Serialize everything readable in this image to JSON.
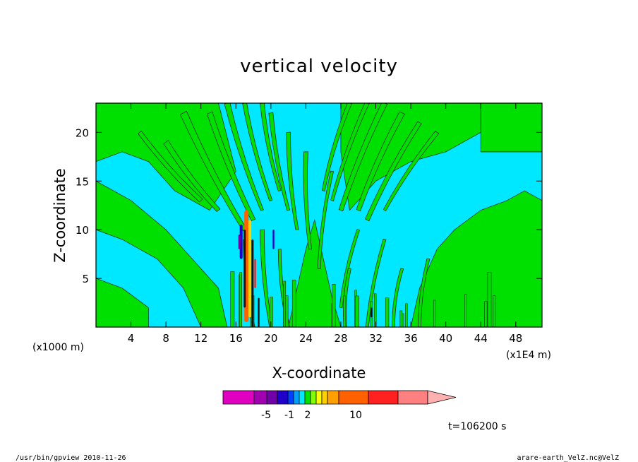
{
  "chart_data": {
    "type": "heatmap",
    "title": "vertical velocity",
    "xlabel": "X-coordinate",
    "ylabel": "Z-coordinate",
    "x_unit_left": "(x1000 m)",
    "x_unit_right": "(x1E4 m)",
    "xlim": [
      0,
      51
    ],
    "ylim": [
      0,
      23
    ],
    "x_ticks": [
      4,
      8,
      12,
      16,
      20,
      24,
      28,
      32,
      36,
      40,
      44,
      48
    ],
    "y_ticks": [
      5,
      10,
      15,
      20
    ],
    "colorbar": {
      "colors": [
        "#e000c0",
        "#a000b0",
        "#7000a8",
        "#2000c8",
        "#0040ff",
        "#00a0ff",
        "#00e8ff",
        "#00e000",
        "#80ff00",
        "#ffff00",
        "#ffd000",
        "#ffa000",
        "#ff6000",
        "#ff2020",
        "#ff8080",
        "#ffb0b0"
      ],
      "labels": [
        "-5",
        "-1",
        "2",
        "10"
      ],
      "label_levels": [
        -5,
        -1,
        2,
        10
      ]
    },
    "background_color": "#00e8ff",
    "contour_color": "#00e000"
  },
  "time_label": "t=106200 s",
  "footer_left": "/usr/bin/gpview  2010-11-26",
  "footer_right": "arare-earth_VelZ.nc@VelZ"
}
